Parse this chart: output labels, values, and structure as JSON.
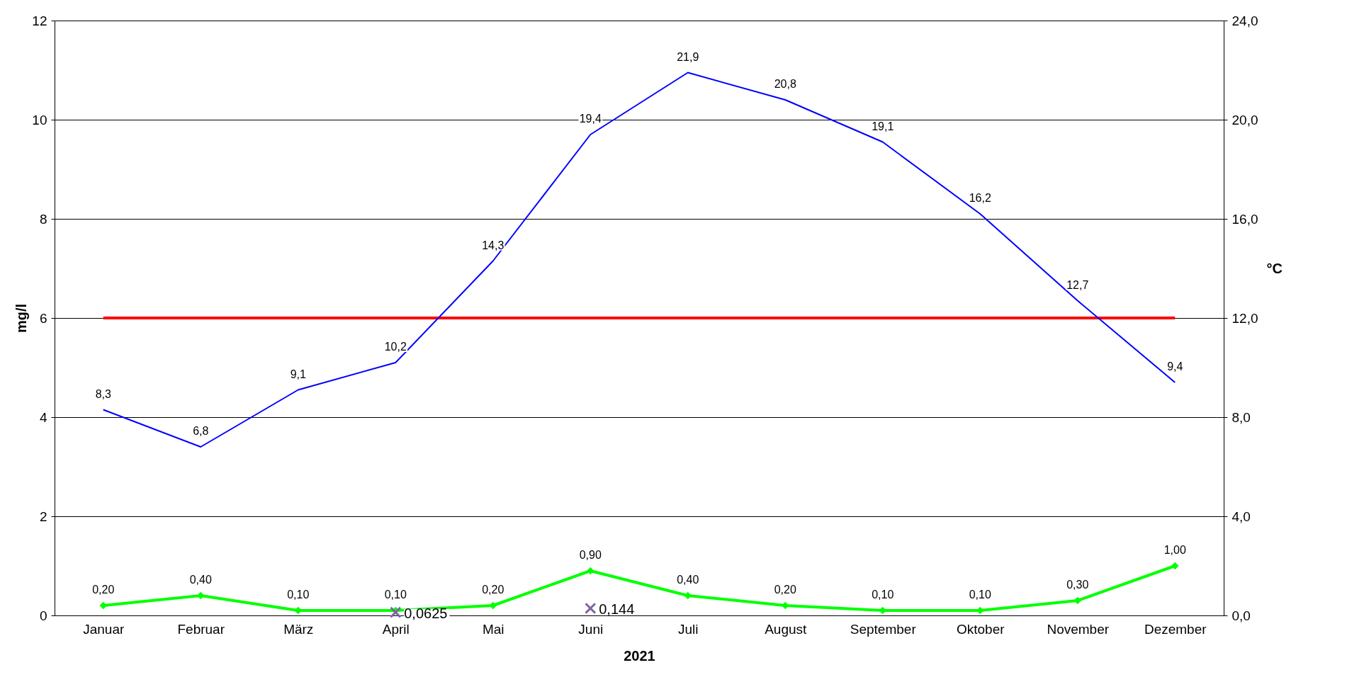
{
  "chart_data": {
    "type": "line",
    "xlabel": "2021",
    "ylabel": "mg/l",
    "y2label": "°C",
    "categories": [
      "Januar",
      "Februar",
      "März",
      "April",
      "Mai",
      "Juni",
      "Juli",
      "August",
      "September",
      "Oktober",
      "November",
      "Dezember"
    ],
    "ylim": [
      0,
      12
    ],
    "yticks": [
      0,
      2,
      4,
      6,
      8,
      10,
      12
    ],
    "y2lim": [
      0,
      24
    ],
    "y2ticks": [
      {
        "value": 0,
        "label": "0,0"
      },
      {
        "value": 4,
        "label": "4,0"
      },
      {
        "value": 8,
        "label": "8,0"
      },
      {
        "value": 12,
        "label": "12,0"
      },
      {
        "value": 16,
        "label": "16,0"
      },
      {
        "value": 20,
        "label": "20,0"
      },
      {
        "value": 24,
        "label": "24,0"
      }
    ],
    "grid": "y",
    "series": [
      {
        "type": "line",
        "color": "#ff0000",
        "marker": "none",
        "values": [
          6,
          6,
          6,
          6,
          6,
          6,
          6,
          6,
          6,
          6,
          6,
          6
        ]
      },
      {
        "type": "line",
        "axis": "y2",
        "color": "#0000ff",
        "marker": "none",
        "values": [
          8.3,
          6.8,
          9.1,
          10.2,
          14.3,
          19.4,
          21.9,
          20.8,
          19.1,
          16.2,
          12.7,
          9.4
        ],
        "value_labels": [
          "8,3",
          "6,8",
          "9,1",
          "10,2",
          "14,3",
          "19,4",
          "21,9",
          "20,8",
          "19,1",
          "16,2",
          "12,7",
          "9,4"
        ]
      },
      {
        "type": "line",
        "color": "#00ff00",
        "marker": "diamond",
        "values": [
          0.2,
          0.4,
          0.1,
          0.1,
          0.2,
          0.9,
          0.4,
          0.2,
          0.1,
          0.1,
          0.3,
          1.0
        ],
        "value_labels": [
          "0,20",
          "0,40",
          "0,10",
          "0,10",
          "0,20",
          "0,90",
          "0,40",
          "0,20",
          "0,10",
          "0,10",
          "0,30",
          "1,00"
        ]
      },
      {
        "type": "scatter",
        "color": "#8064a2",
        "marker": "cross",
        "x": [
          "April",
          "Juni"
        ],
        "values": [
          0.0625,
          0.144
        ],
        "value_labels": [
          "0,0625",
          "0,144"
        ]
      }
    ]
  }
}
